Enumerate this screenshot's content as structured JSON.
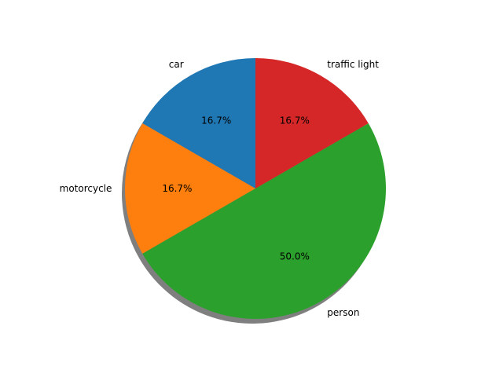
{
  "chart_data": {
    "type": "pie",
    "title": "",
    "shadow": true,
    "start_angle_deg": 90,
    "direction": "counterclockwise",
    "slices": [
      {
        "label": "car",
        "value": 1,
        "percent_label": "16.7%",
        "color": "#1f77b4"
      },
      {
        "label": "motorcycle",
        "value": 1,
        "percent_label": "16.7%",
        "color": "#ff7f0e"
      },
      {
        "label": "person",
        "value": 3,
        "percent_label": "50.0%",
        "color": "#2ca02c"
      },
      {
        "label": "traffic light",
        "value": 1,
        "percent_label": "16.7%",
        "color": "#d62728"
      }
    ]
  }
}
